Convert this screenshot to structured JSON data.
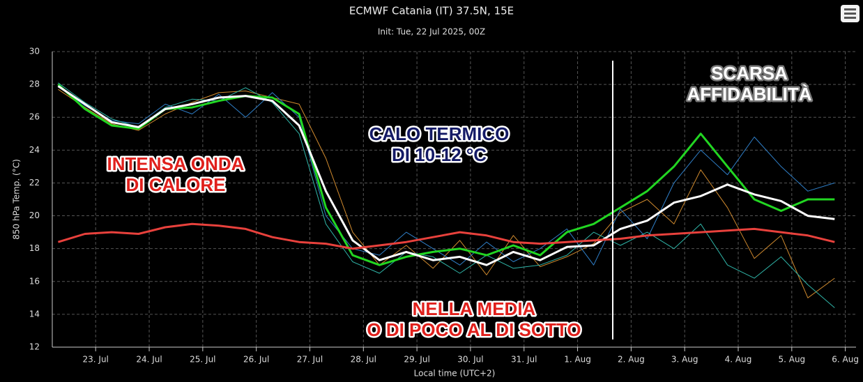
{
  "chart_data": {
    "type": "line",
    "title": "ECMWF Catania (IT) 37.5N, 15E",
    "subtitle": "Init: Tue, 22 Jul 2025, 00Z",
    "y_label": "850 hPa Temp. (°C)",
    "x_label": "Local time (UTC+2)",
    "xlim": [
      22.19,
      37.2
    ],
    "ylim": [
      12,
      30
    ],
    "yticks": [
      12,
      14,
      16,
      18,
      20,
      22,
      24,
      26,
      28,
      30
    ],
    "xticks": [
      {
        "value": 23,
        "label": "23. Jul"
      },
      {
        "value": 24,
        "label": "24. Jul"
      },
      {
        "value": 25,
        "label": "25. Jul"
      },
      {
        "value": 26,
        "label": "26. Jul"
      },
      {
        "value": 27,
        "label": "27. Jul"
      },
      {
        "value": 28,
        "label": "28. Jul"
      },
      {
        "value": 29,
        "label": "29. Jul"
      },
      {
        "value": 30,
        "label": "30. Jul"
      },
      {
        "value": 31,
        "label": "31. Jul"
      },
      {
        "value": 32,
        "label": "1. Aug"
      },
      {
        "value": 33,
        "label": "2. Aug"
      },
      {
        "value": 34,
        "label": "3. Aug"
      },
      {
        "value": 35,
        "label": "4. Aug"
      },
      {
        "value": 36,
        "label": "5. Aug"
      },
      {
        "value": 37,
        "label": "6. Aug"
      }
    ],
    "grid": true,
    "x": [
      22.3,
      22.8,
      23.3,
      23.8,
      24.3,
      24.8,
      25.3,
      25.8,
      26.3,
      26.8,
      27.3,
      27.8,
      28.3,
      28.8,
      29.3,
      29.8,
      30.3,
      30.8,
      31.3,
      31.8,
      32.3,
      32.8,
      33.3,
      33.8,
      34.3,
      34.8,
      35.3,
      35.8,
      36.3,
      36.8
    ],
    "series": [
      {
        "color": "#d08a2e",
        "width": 1,
        "values": [
          27.7,
          26.6,
          25.6,
          25.2,
          26.2,
          26.9,
          27.5,
          27.6,
          27.2,
          26.8,
          23.5,
          19.0,
          17.0,
          18.2,
          16.8,
          18.5,
          16.4,
          18.8,
          16.9,
          17.5,
          18.3,
          20.2,
          21.0,
          19.5,
          22.8,
          20.5,
          17.4,
          18.8,
          15.0,
          16.2
        ]
      },
      {
        "color": "#2f7fc8",
        "width": 1,
        "values": [
          27.9,
          26.7,
          25.8,
          25.6,
          26.8,
          26.2,
          27.4,
          26.0,
          27.5,
          26.0,
          20.0,
          18.0,
          17.6,
          19.0,
          18.0,
          17.0,
          18.4,
          17.2,
          18.0,
          19.2,
          17.0,
          20.4,
          18.6,
          22.0,
          24.0,
          22.5,
          24.8,
          23.0,
          21.5,
          22.0
        ]
      },
      {
        "color": "#2fb5a8",
        "width": 1,
        "values": [
          28.1,
          26.9,
          25.9,
          25.4,
          26.6,
          27.1,
          27.0,
          27.8,
          26.9,
          25.0,
          19.5,
          17.2,
          16.5,
          17.8,
          17.5,
          16.5,
          17.6,
          16.8,
          17.0,
          17.6,
          19.0,
          18.2,
          19.0,
          18.0,
          19.5,
          17.0,
          16.2,
          17.5,
          15.8,
          14.4
        ]
      },
      {
        "color": "#22d622",
        "width": 3,
        "values": [
          28.0,
          26.5,
          25.5,
          25.3,
          26.5,
          26.6,
          27.0,
          27.3,
          27.2,
          26.2,
          20.5,
          17.6,
          17.0,
          17.5,
          17.8,
          18.0,
          17.6,
          18.2,
          17.6,
          19.0,
          19.5,
          20.5,
          21.5,
          23.0,
          25.0,
          23.0,
          21.0,
          20.3,
          21.0,
          21.0
        ]
      },
      {
        "color": "#ffffff",
        "width": 3,
        "values": [
          27.9,
          26.8,
          25.7,
          25.4,
          26.5,
          26.8,
          27.2,
          27.3,
          27.0,
          25.5,
          21.5,
          18.5,
          17.3,
          17.8,
          17.3,
          17.5,
          17.0,
          17.8,
          17.3,
          18.1,
          18.2,
          19.2,
          19.7,
          20.8,
          21.2,
          21.9,
          21.3,
          20.9,
          20.0,
          19.8
        ]
      },
      {
        "color": "#e8413c",
        "width": 3,
        "values": [
          18.4,
          18.9,
          19.0,
          18.9,
          19.3,
          19.5,
          19.4,
          19.2,
          18.7,
          18.4,
          18.3,
          18.0,
          18.2,
          18.4,
          18.7,
          19.0,
          18.8,
          18.4,
          18.3,
          18.4,
          18.5,
          18.6,
          18.8,
          18.9,
          19.0,
          19.1,
          19.2,
          19.0,
          18.8,
          18.4
        ]
      }
    ],
    "annotations": [
      {
        "lines": [
          "INTENSA ONDA",
          "DI CALORE"
        ],
        "color": "#e0201c",
        "outline": "#ffffff"
      },
      {
        "lines": [
          "CALO TERMICO",
          "DI 10-12 °C"
        ],
        "color": "#141a66",
        "outline": "#ffffff"
      },
      {
        "lines": [
          "NELLA MEDIA",
          "O DI POCO AL DI SOTTO"
        ],
        "color": "#e0201c",
        "outline": "#ffffff"
      },
      {
        "lines": [
          "SCARSA",
          "AFFIDABILITÀ"
        ],
        "color": "#ffffff",
        "outline": "#777777"
      }
    ]
  }
}
